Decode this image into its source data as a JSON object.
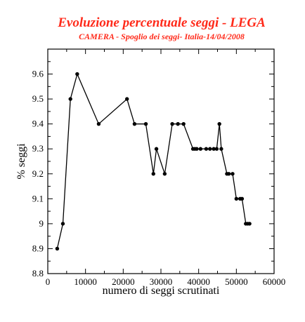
{
  "chart_data": {
    "type": "line",
    "title": "Evoluzione percentuale seggi - LEGA",
    "subtitle": "CAMERA - Spoglio dei seggi- Italia-14/04/2008",
    "xlabel": "numero di seggi scrutinati",
    "ylabel": "% seggi",
    "xlim": [
      0,
      60000
    ],
    "ylim": [
      8.8,
      9.7
    ],
    "x_ticks": [
      "0",
      "10000",
      "20000",
      "30000",
      "40000",
      "50000",
      "60000"
    ],
    "y_ticks": [
      "8.8",
      "8.9",
      "9",
      "9.1",
      "9.2",
      "9.3",
      "9.4",
      "9.5",
      "9.6"
    ],
    "grid": false,
    "line_color": "#000000",
    "title_color": "#ff2a1a",
    "series": [
      {
        "x": [
          2500,
          4000,
          6000,
          7800,
          13500,
          21000,
          23000,
          26000,
          28000,
          28800,
          31000,
          33000,
          34500,
          36000,
          38500,
          39000,
          39500,
          40500,
          42000,
          43000,
          44000,
          44800,
          45500,
          46000,
          47500,
          48000,
          49000,
          50000,
          51000,
          51500,
          52500,
          53000,
          53500
        ],
        "y": [
          8.9,
          9.0,
          9.5,
          9.6,
          9.4,
          9.5,
          9.4,
          9.4,
          9.2,
          9.3,
          9.2,
          9.4,
          9.4,
          9.4,
          9.3,
          9.3,
          9.3,
          9.3,
          9.3,
          9.3,
          9.3,
          9.3,
          9.4,
          9.3,
          9.2,
          9.2,
          9.2,
          9.1,
          9.1,
          9.1,
          9.0,
          9.0,
          9.0
        ]
      }
    ]
  }
}
